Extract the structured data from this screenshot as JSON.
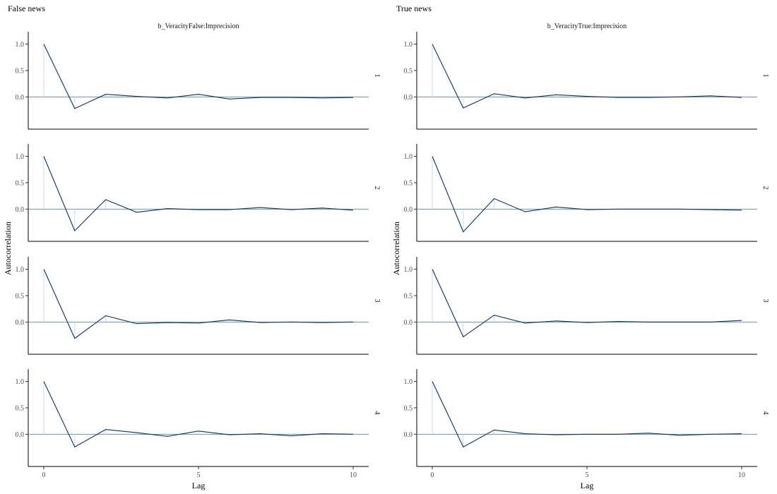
{
  "chart_data": {
    "type": "line",
    "xlabel": "Lag",
    "ylabel": "Autocorrelation",
    "xlim": [
      0,
      10
    ],
    "ylim": [
      -0.45,
      1.1
    ],
    "x_ticks": [
      0,
      5,
      10
    ],
    "y_ticks": [
      0.0,
      0.5,
      1.0
    ],
    "x_tick_labels": [
      "0",
      "5",
      "10"
    ],
    "y_tick_labels": [
      "0.0",
      "0.5",
      "1.0"
    ],
    "grid": false,
    "colors": {
      "line": "#08306b",
      "bar": "#c9dbe8",
      "zero_line": "#6b93a8"
    },
    "columns": [
      {
        "title": "False news",
        "parameter": "b_VeracityFalse:Imprecision",
        "chains": [
          {
            "chain": "1",
            "x": [
              0,
              1,
              2,
              3,
              4,
              5,
              6,
              7,
              8,
              9,
              10
            ],
            "values": [
              1.0,
              -0.22,
              0.05,
              0.01,
              -0.02,
              0.05,
              -0.04,
              -0.01,
              -0.01,
              -0.02,
              -0.01
            ]
          },
          {
            "chain": "2",
            "x": [
              0,
              1,
              2,
              3,
              4,
              5,
              6,
              7,
              8,
              9,
              10
            ],
            "values": [
              1.0,
              -0.41,
              0.18,
              -0.06,
              0.01,
              -0.01,
              -0.01,
              0.03,
              -0.01,
              0.02,
              -0.02
            ]
          },
          {
            "chain": "3",
            "x": [
              0,
              1,
              2,
              3,
              4,
              5,
              6,
              7,
              8,
              9,
              10
            ],
            "values": [
              1.0,
              -0.31,
              0.12,
              -0.03,
              -0.01,
              -0.02,
              0.04,
              -0.01,
              0.0,
              -0.01,
              0.0
            ]
          },
          {
            "chain": "4",
            "x": [
              0,
              1,
              2,
              3,
              4,
              5,
              6,
              7,
              8,
              9,
              10
            ],
            "values": [
              1.0,
              -0.24,
              0.09,
              0.03,
              -0.04,
              0.06,
              -0.01,
              0.01,
              -0.03,
              0.01,
              0.0
            ]
          }
        ]
      },
      {
        "title": "True news",
        "parameter": "b_VeracityTrue:Imprecision",
        "chains": [
          {
            "chain": "1",
            "x": [
              0,
              1,
              2,
              3,
              4,
              5,
              6,
              7,
              8,
              9,
              10
            ],
            "values": [
              1.0,
              -0.21,
              0.06,
              -0.02,
              0.04,
              0.01,
              -0.01,
              -0.01,
              0.0,
              0.02,
              -0.01
            ]
          },
          {
            "chain": "2",
            "x": [
              0,
              1,
              2,
              3,
              4,
              5,
              6,
              7,
              8,
              9,
              10
            ],
            "values": [
              1.0,
              -0.43,
              0.2,
              -0.05,
              0.04,
              -0.01,
              0.0,
              0.0,
              0.0,
              -0.01,
              -0.02
            ]
          },
          {
            "chain": "3",
            "x": [
              0,
              1,
              2,
              3,
              4,
              5,
              6,
              7,
              8,
              9,
              10
            ],
            "values": [
              1.0,
              -0.28,
              0.13,
              -0.02,
              0.02,
              -0.01,
              0.01,
              0.0,
              0.0,
              0.0,
              0.03
            ]
          },
          {
            "chain": "4",
            "x": [
              0,
              1,
              2,
              3,
              4,
              5,
              6,
              7,
              8,
              9,
              10
            ],
            "values": [
              1.0,
              -0.24,
              0.08,
              0.01,
              -0.01,
              0.0,
              0.0,
              0.02,
              -0.02,
              0.0,
              0.01
            ]
          }
        ]
      }
    ]
  }
}
